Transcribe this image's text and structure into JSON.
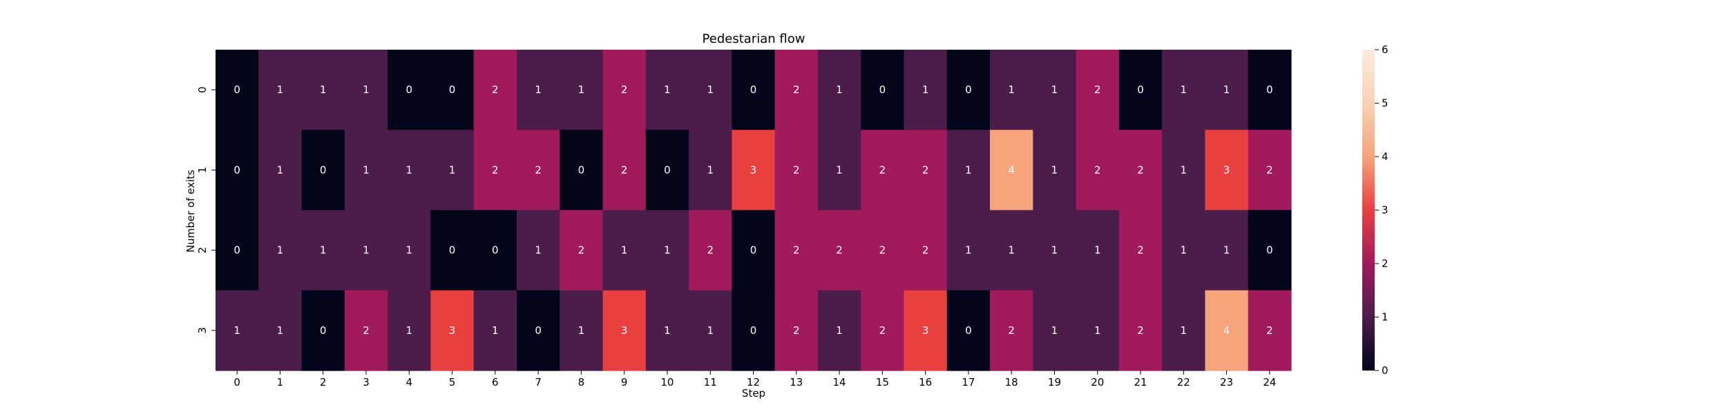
{
  "chart_data": {
    "type": "heatmap",
    "title": "Pedestarian flow",
    "xlabel": "Step",
    "ylabel": "Number of exits",
    "x_categories": [
      "0",
      "1",
      "2",
      "3",
      "4",
      "5",
      "6",
      "7",
      "8",
      "9",
      "10",
      "11",
      "12",
      "13",
      "14",
      "15",
      "16",
      "17",
      "18",
      "19",
      "20",
      "21",
      "22",
      "23",
      "24"
    ],
    "y_categories": [
      "0",
      "1",
      "2",
      "3"
    ],
    "values": [
      [
        0,
        1,
        1,
        1,
        0,
        0,
        2,
        1,
        1,
        2,
        1,
        1,
        0,
        2,
        1,
        0,
        1,
        0,
        1,
        1,
        2,
        0,
        1,
        1,
        0
      ],
      [
        0,
        1,
        0,
        1,
        1,
        1,
        2,
        2,
        0,
        2,
        0,
        1,
        3,
        2,
        1,
        2,
        2,
        1,
        4,
        1,
        2,
        2,
        1,
        3,
        2
      ],
      [
        0,
        1,
        1,
        1,
        1,
        0,
        0,
        1,
        2,
        1,
        1,
        2,
        0,
        2,
        2,
        2,
        2,
        1,
        1,
        1,
        1,
        2,
        1,
        1,
        0
      ],
      [
        1,
        1,
        0,
        2,
        1,
        3,
        1,
        0,
        1,
        3,
        1,
        1,
        0,
        2,
        1,
        2,
        3,
        0,
        2,
        1,
        1,
        2,
        1,
        4,
        2
      ]
    ],
    "colorbar": {
      "min": 0,
      "max": 6,
      "ticks": [
        "0",
        "1",
        "2",
        "3",
        "4",
        "5",
        "6"
      ]
    },
    "colormap": "rocket",
    "colors": {
      "0": "#03051a",
      "1": "#4c1d4b",
      "2": "#a11a5b",
      "3": "#e83f3f",
      "4": "#f6a47c",
      "5": "#f9d2b5",
      "6": "#faebdd"
    },
    "annotation_color": "#ffffff",
    "grid": false
  }
}
